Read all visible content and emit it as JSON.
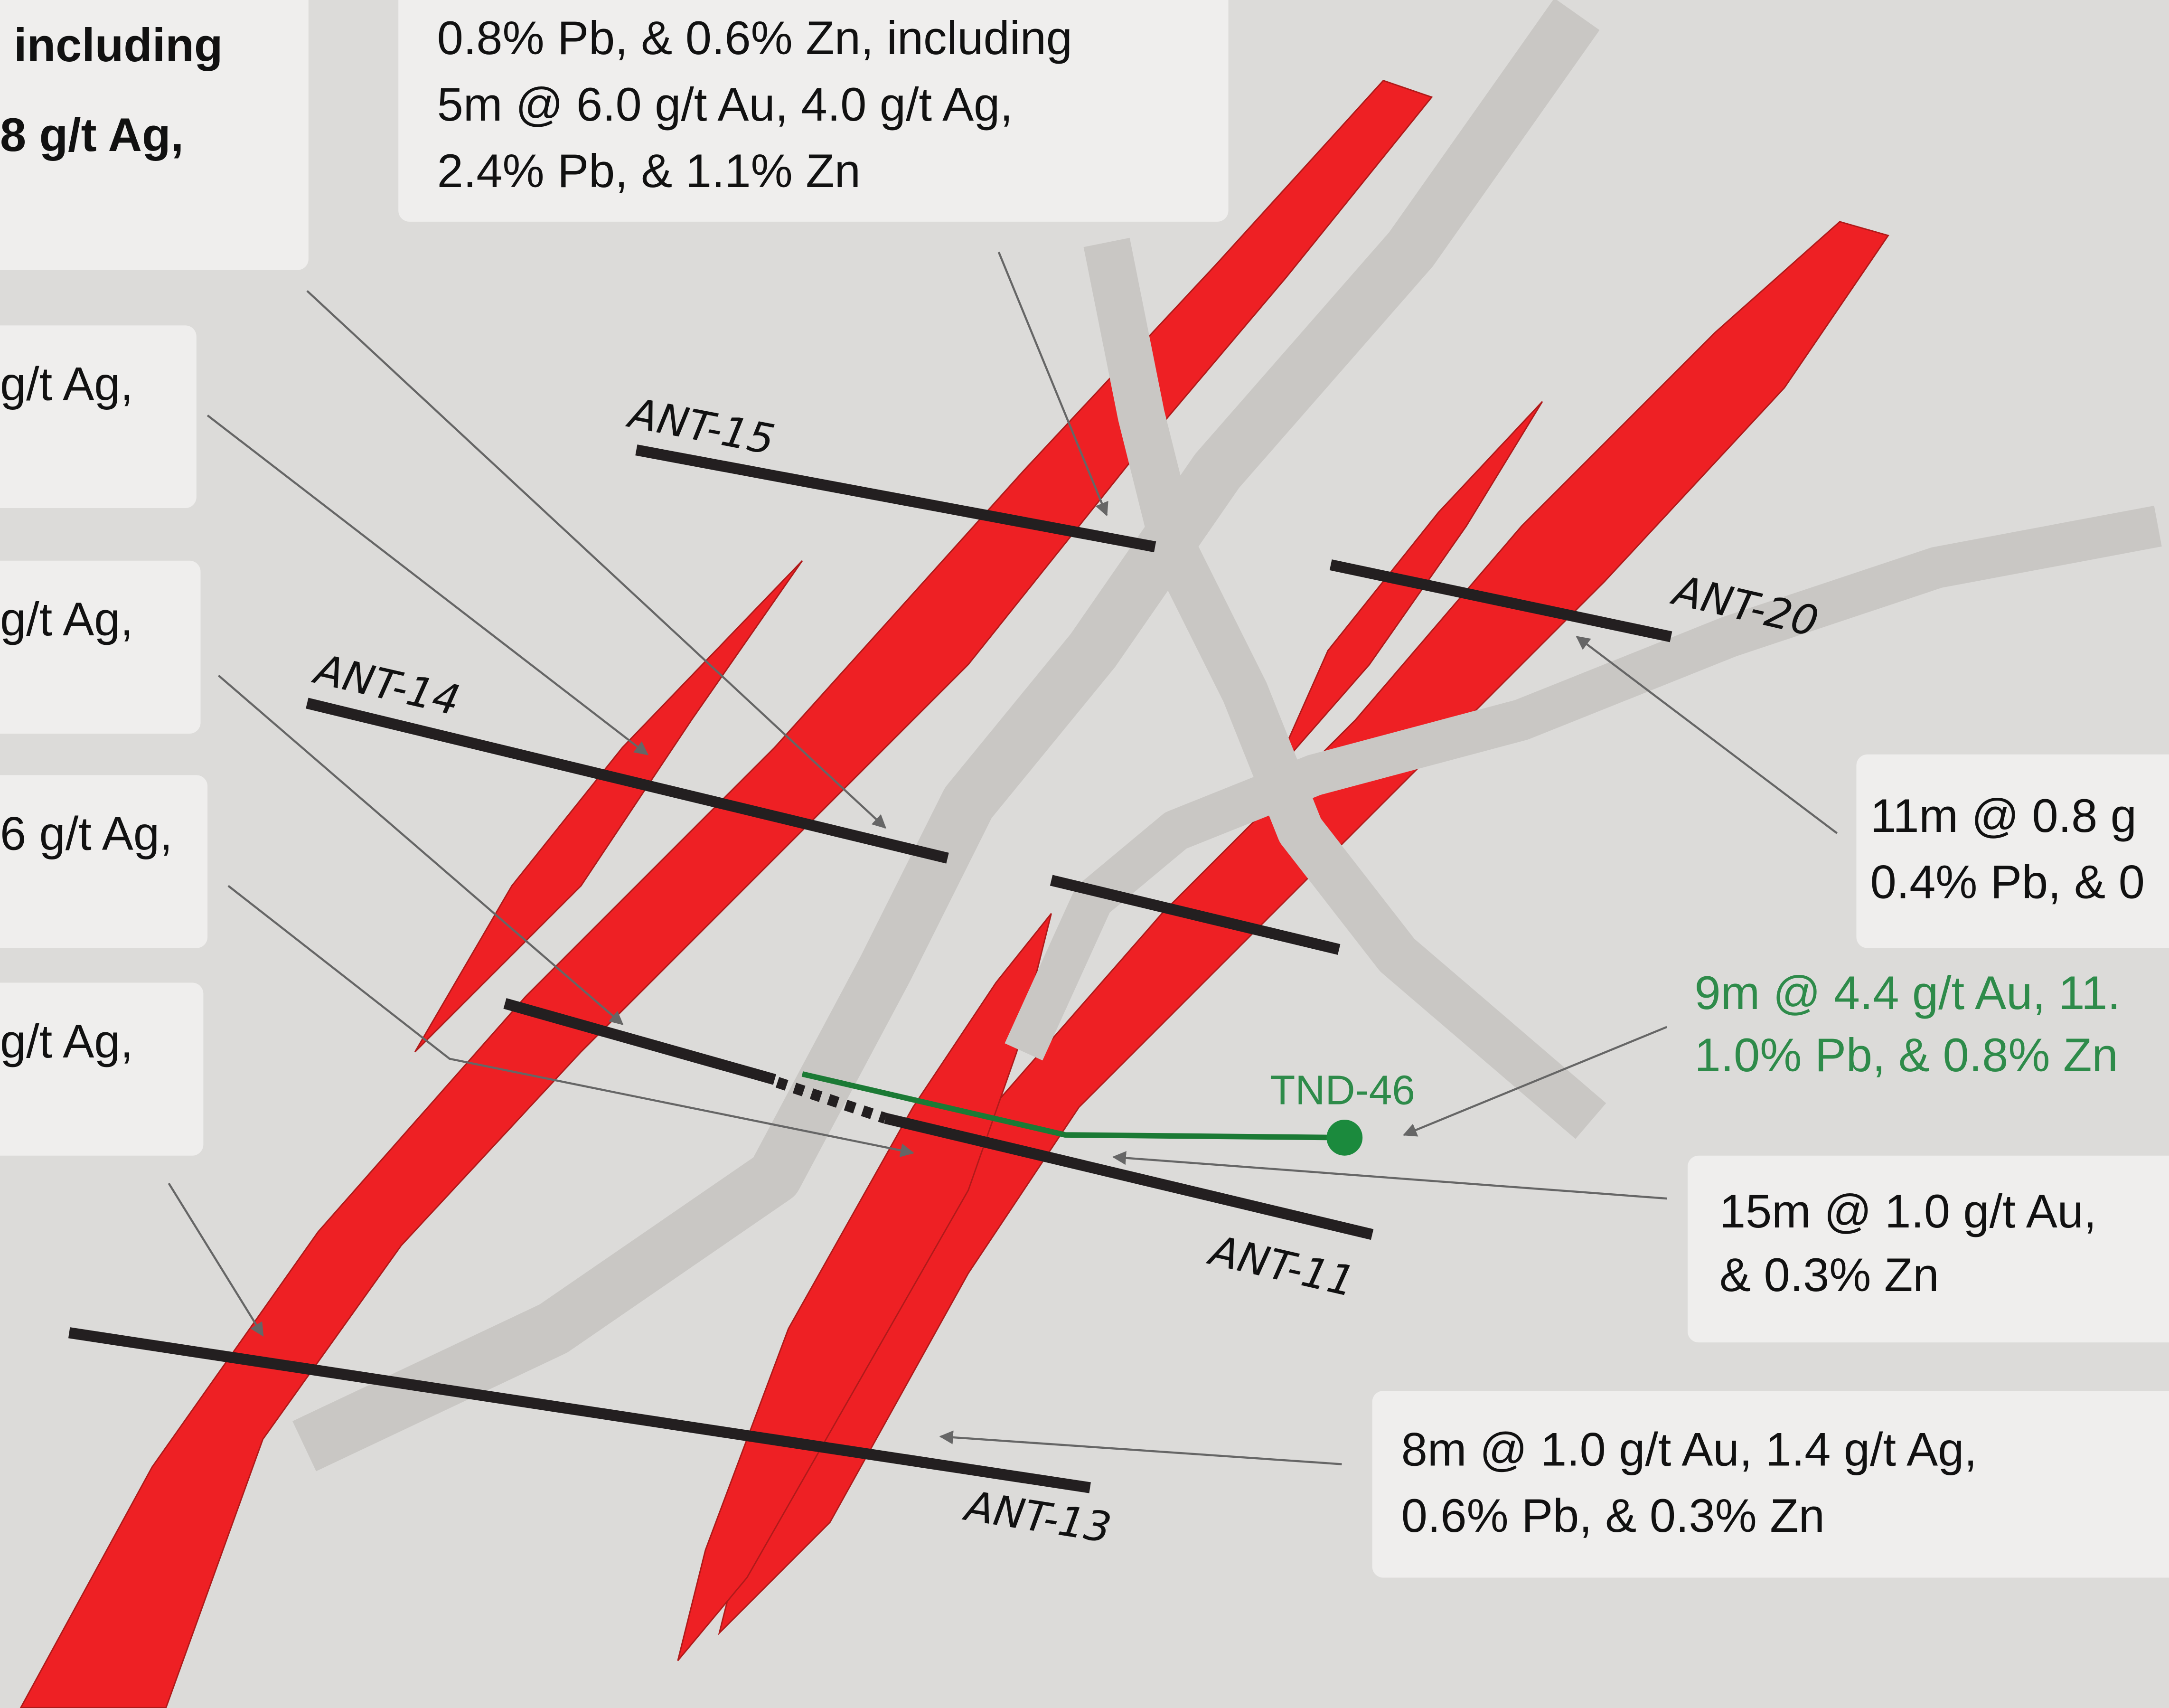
{
  "callouts": [
    {
      "lines": [
        "including",
        "8 g/t Ag,"
      ]
    },
    {
      "lines": [
        "0.8% Pb, & 0.6% Zn,  including",
        "5m @ 6.0 g/t Au, 4.0 g/t Ag,",
        "2.4% Pb, & 1.1% Zn"
      ]
    },
    {
      "lines": [
        "g/t Ag,"
      ]
    },
    {
      "lines": [
        "g/t Ag,"
      ]
    },
    {
      "lines": [
        "6 g/t Ag,"
      ]
    },
    {
      "lines": [
        "g/t Ag,"
      ]
    },
    {
      "lines": [
        "11m @ 0.8 g",
        "0.4% Pb, & 0"
      ]
    },
    {
      "lines": [
        "9m @ 4.4 g/t Au, 11.",
        "1.0% Pb, & 0.8% Zn"
      ]
    },
    {
      "lines": [
        "15m @ 1.0 g/t Au,",
        "& 0.3% Zn"
      ]
    },
    {
      "lines": [
        "8m @ 1.0 g/t Au, 1.4 g/t Ag,",
        "0.6% Pb, & 0.3% Zn"
      ]
    }
  ],
  "drill_holes": [
    {
      "label": "ANT-15"
    },
    {
      "label": "ANT-20"
    },
    {
      "label": "ANT-14"
    },
    {
      "label": "ANT-11"
    },
    {
      "label": "ANT-13"
    },
    {
      "label": "TND-46"
    }
  ]
}
